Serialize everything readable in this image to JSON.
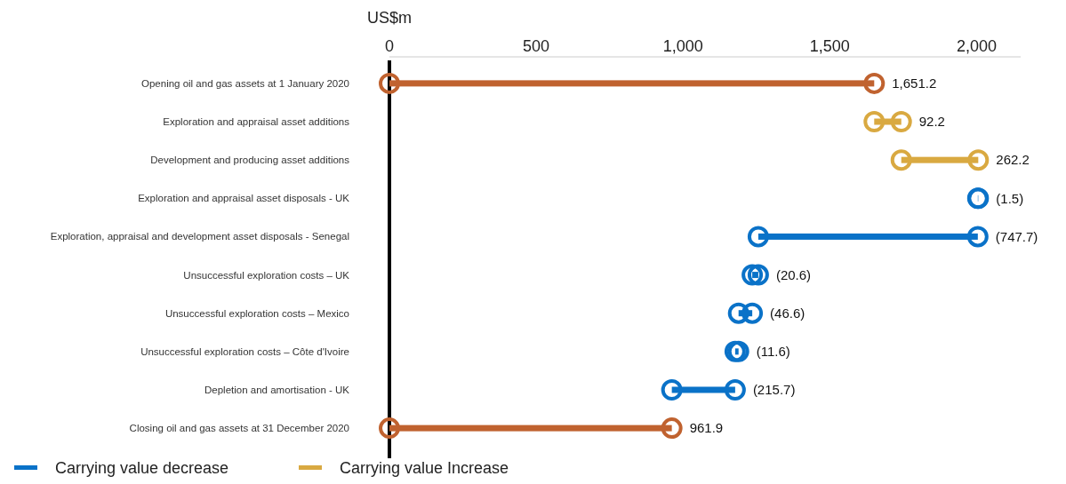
{
  "chart_data": {
    "type": "bar",
    "orientation": "horizontal",
    "xlabel": "US$m",
    "categories": [
      "Opening oil and gas assets at 1 January 2020",
      "Exploration and appraisal asset additions",
      "Development and producing asset additions",
      "Exploration and appraisal asset disposals - UK",
      "Exploration, appraisal and development asset disposals - Senegal",
      "Unsuccessful exploration costs – UK",
      "Unsuccessful exploration costs – Mexico",
      "Unsuccessful exploration costs – Côte d'Ivoire",
      "Depletion and amortisation - UK",
      "Closing oil and gas assets at 31 December 2020"
    ],
    "xlim": [
      0,
      2150
    ],
    "xticks": [
      0,
      500,
      {
        "value": 1000,
        "label": "1,000"
      },
      {
        "value": 1500,
        "label": "1,500"
      },
      {
        "value": 2000,
        "label": "2,000"
      }
    ],
    "series": [
      {
        "color": "#c0622f",
        "base": [
          0,
          null,
          null,
          null,
          null,
          null,
          null,
          null,
          null,
          0
        ],
        "values": [
          1651.2,
          null,
          null,
          null,
          null,
          null,
          null,
          null,
          null,
          961.9
        ],
        "value_labels": [
          "1,651.2",
          null,
          null,
          null,
          null,
          null,
          null,
          null,
          null,
          "961.9"
        ]
      },
      {
        "name": "Carrying value decrease",
        "color": "#0a72c8",
        "base": [
          null,
          null,
          null,
          2005.6,
          2004.1,
          1256.4,
          1235.8,
          1189.2,
          1177.6,
          null
        ],
        "values": [
          null,
          null,
          null,
          -1.5,
          -747.7,
          -20.6,
          -46.6,
          -11.6,
          -215.7,
          null
        ],
        "value_labels": [
          null,
          null,
          null,
          "(1.5)",
          "(747.7)",
          "(20.6)",
          "(46.6)",
          "(11.6)",
          "(215.7)",
          null
        ]
      },
      {
        "name": "Carrying value Increase",
        "color": "#d9a941",
        "base": [
          null,
          1651.2,
          1743.4,
          null,
          null,
          null,
          null,
          null,
          null,
          null
        ],
        "values": [
          null,
          92.2,
          262.2,
          null,
          null,
          null,
          null,
          null,
          null,
          null
        ],
        "value_labels": [
          null,
          "92.2",
          "262.2",
          null,
          null,
          null,
          null,
          null,
          null,
          null
        ]
      }
    ],
    "marker": "circle",
    "legend": "bottom left",
    "grid": false
  }
}
